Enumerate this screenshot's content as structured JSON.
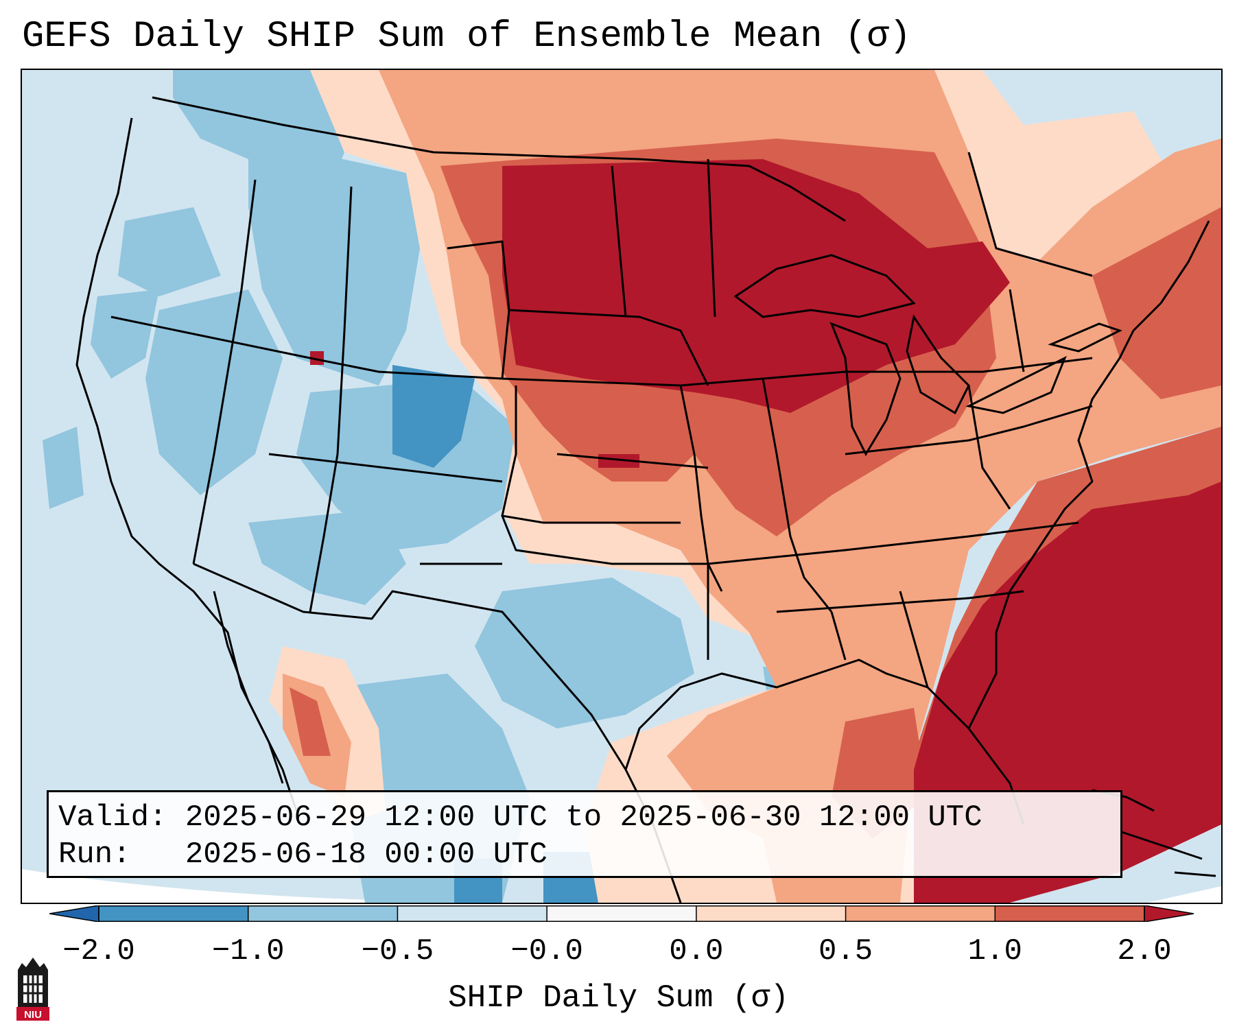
{
  "title": "GEFS Daily SHIP Sum of Ensemble Mean (σ)",
  "map": {
    "name": "CONUS SHIP anomaly map",
    "region": "Contiguous United States, southern Canada, northern Mexico, Gulf of Mexico"
  },
  "info": {
    "valid_line": "Valid: 2025-06-29 12:00 UTC to 2025-06-30 12:00 UTC",
    "run_line": "Run:   2025-06-18 00:00 UTC"
  },
  "colorbar": {
    "label": "SHIP Daily Sum (σ)",
    "ticks": [
      "−2.0",
      "−1.0",
      "−0.5",
      "−0.0",
      "0.0",
      "0.5",
      "1.0",
      "2.0"
    ],
    "colors": [
      "#2166ac",
      "#4393c3",
      "#92c5de",
      "#d1e5f0",
      "#f7f7f7",
      "#fddbc7",
      "#f4a582",
      "#d6604d",
      "#b2182b"
    ]
  },
  "logo": {
    "text": "NIU",
    "icon": "niu-tower-icon"
  }
}
